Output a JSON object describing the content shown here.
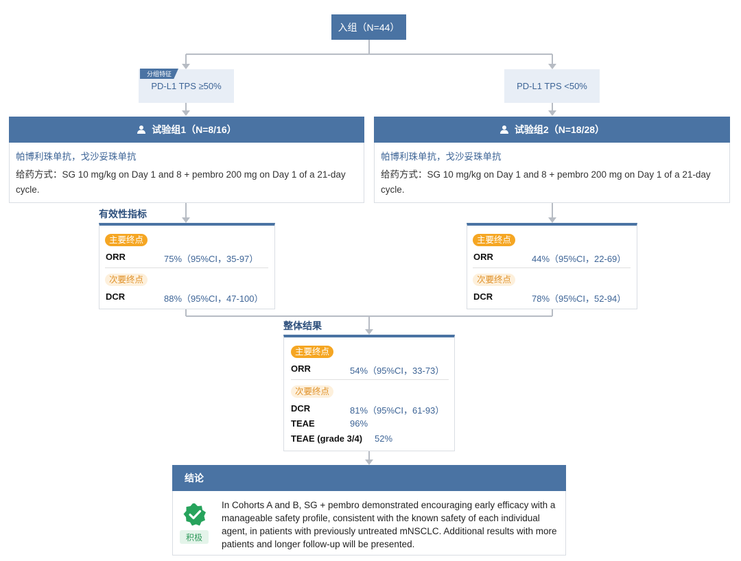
{
  "top_node": {
    "label": "入组（N=44）"
  },
  "feature_tag": "分组特征",
  "branches": [
    {
      "feature": "PD-L1 TPS ≥50%",
      "cohort_title": "试验组1（N=8/16）",
      "drugs": "帕博利珠单抗，戈沙妥珠单抗",
      "dosing": "给药方式：SG 10 mg/kg on Day 1 and 8 + pembro 200 mg on Day 1 of a 21-day cycle.",
      "primary_badge": "主要终点",
      "primary_key": "ORR",
      "primary_value": "75%（95%CI，35-97）",
      "secondary_badge": "次要终点",
      "secondary_key": "DCR",
      "secondary_value": "88%（95%CI，47-100）"
    },
    {
      "feature": "PD-L1 TPS <50%",
      "cohort_title": "试验组2（N=18/28）",
      "drugs": "帕博利珠单抗，戈沙妥珠单抗",
      "dosing": "给药方式：SG 10 mg/kg on Day 1 and 8 + pembro 200 mg on Day 1 of a 21-day cycle.",
      "primary_badge": "主要终点",
      "primary_key": "ORR",
      "primary_value": "44%（95%CI，22-69）",
      "secondary_badge": "次要终点",
      "secondary_key": "DCR",
      "secondary_value": "78%（95%CI，52-94）"
    }
  ],
  "efficacy_title": "有效性指标",
  "overall": {
    "title": "整体结果",
    "primary_badge": "主要终点",
    "orr_key": "ORR",
    "orr_value": "54%（95%CI，33-73）",
    "secondary_badge": "次要终点",
    "dcr_key": "DCR",
    "dcr_value": "81%（95%CI，61-93）",
    "teae_key": "TEAE",
    "teae_value": "96%",
    "teae34_key": "TEAE (grade 3/4)",
    "teae34_value": "52%"
  },
  "conclusion": {
    "title": "结论",
    "badge": "积极",
    "text": "In Cohorts A and B, SG + pembro demonstrated encouraging early efficacy with a manageable safety profile, consistent with the known safety of each individual agent, in patients with previously untreated mNSCLC. Additional results with more patients and longer follow-up will be presented."
  },
  "colors": {
    "header_blue": "#4a73a3",
    "connector_gray": "#b7bcc4",
    "primary_orange": "#f5a623",
    "secondary_tint": "#fdf0dc",
    "positive_green": "#27a35c"
  },
  "icons": [
    "person-icon",
    "verified-badge-icon"
  ]
}
